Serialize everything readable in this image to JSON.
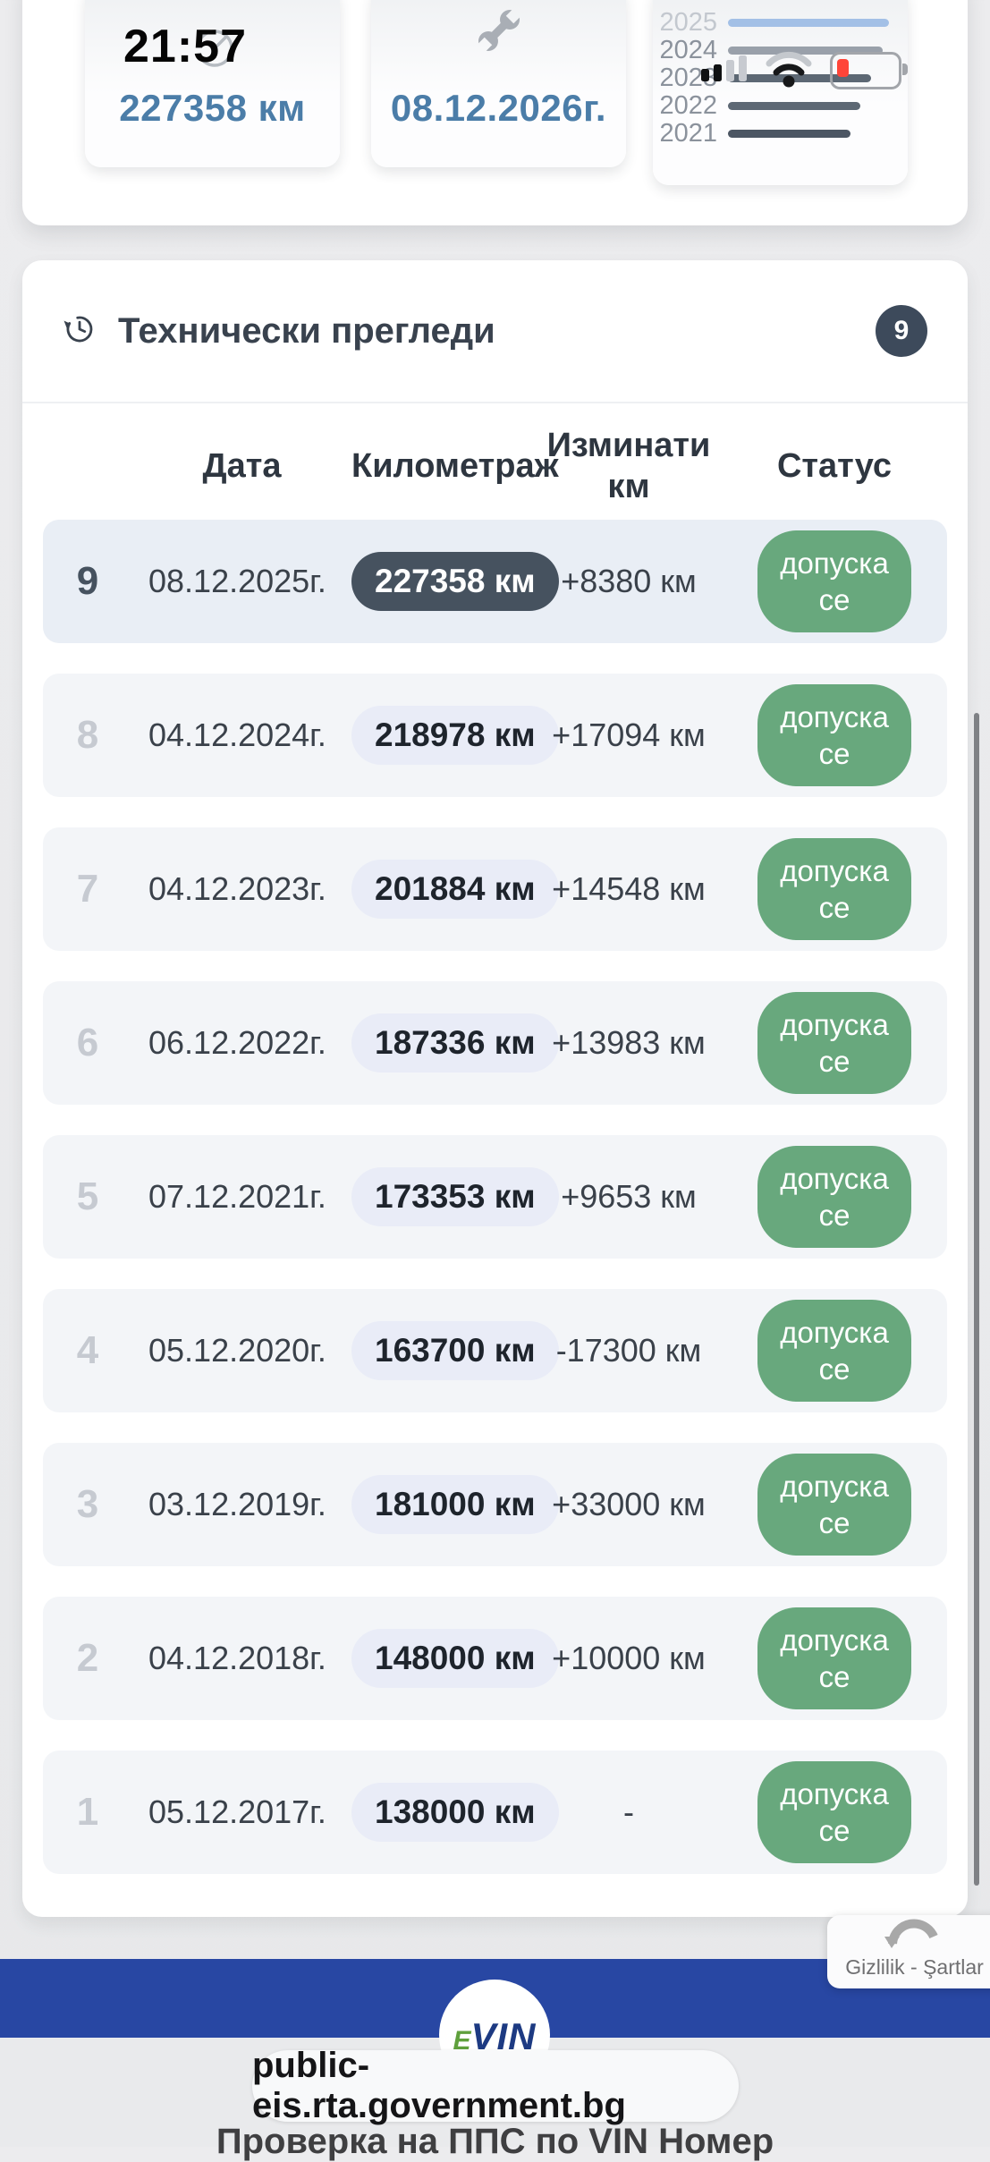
{
  "status_bar": {
    "time": "21:57"
  },
  "summary": {
    "odometer_value": "227358 км",
    "next_inspection_date": "08.12.2026г."
  },
  "chart_data": {
    "type": "bar",
    "orientation": "horizontal",
    "categories": [
      "2025",
      "2024",
      "2023",
      "2022",
      "2021"
    ],
    "values": [
      227358,
      218978,
      201884,
      187336,
      173353
    ],
    "unit": "км",
    "xlim": [
      0,
      227358
    ],
    "bar_colors": [
      "#a3c0e6",
      "#99a0aa",
      "#5d6874",
      "#5d6874",
      "#4c5663"
    ],
    "label_colors": [
      "#c3c8cf",
      "#8b929c",
      "#8b929c",
      "#8b929c",
      "#8b929c"
    ]
  },
  "inspections_panel": {
    "title": "Технически прегледи",
    "count_badge": "9",
    "columns": [
      "Дата",
      "Километраж",
      "Изминати км",
      "Статус"
    ],
    "rows": [
      {
        "num": "9",
        "date": "08.12.2025г.",
        "odometer": "227358 км",
        "delta": "+8380 км",
        "status": "допуска се",
        "highlight": true
      },
      {
        "num": "8",
        "date": "04.12.2024г.",
        "odometer": "218978 км",
        "delta": "+17094 км",
        "status": "допуска се",
        "highlight": false
      },
      {
        "num": "7",
        "date": "04.12.2023г.",
        "odometer": "201884 км",
        "delta": "+14548 км",
        "status": "допуска се",
        "highlight": false
      },
      {
        "num": "6",
        "date": "06.12.2022г.",
        "odometer": "187336 км",
        "delta": "+13983 км",
        "status": "допуска се",
        "highlight": false
      },
      {
        "num": "5",
        "date": "07.12.2021г.",
        "odometer": "173353 км",
        "delta": "+9653 км",
        "status": "допуска се",
        "highlight": false
      },
      {
        "num": "4",
        "date": "05.12.2020г.",
        "odometer": "163700 км",
        "delta": "-17300 км",
        "status": "допуска се",
        "highlight": false
      },
      {
        "num": "3",
        "date": "03.12.2019г.",
        "odometer": "181000 км",
        "delta": "+33000 км",
        "status": "допуска се",
        "highlight": false
      },
      {
        "num": "2",
        "date": "04.12.2018г.",
        "odometer": "148000 км",
        "delta": "+10000 км",
        "status": "допуска се",
        "highlight": false
      },
      {
        "num": "1",
        "date": "05.12.2017г.",
        "odometer": "138000 км",
        "delta": "-",
        "status": "допуска се",
        "highlight": false
      }
    ]
  },
  "recaptcha": {
    "label": "Gizlilik - Şartlar"
  },
  "footer": {
    "logo_e": "E",
    "logo_vin": "VIN",
    "url": "public-eis.rta.government.bg",
    "page_title": "Проверка на ППС по VIN Номер"
  },
  "colors": {
    "accent_blue_text": "#4b7da8",
    "footer_blue": "#2847a3",
    "status_green": "#68a87d",
    "dark_slate": "#3d4a5b",
    "battery_red": "#ff4538"
  }
}
